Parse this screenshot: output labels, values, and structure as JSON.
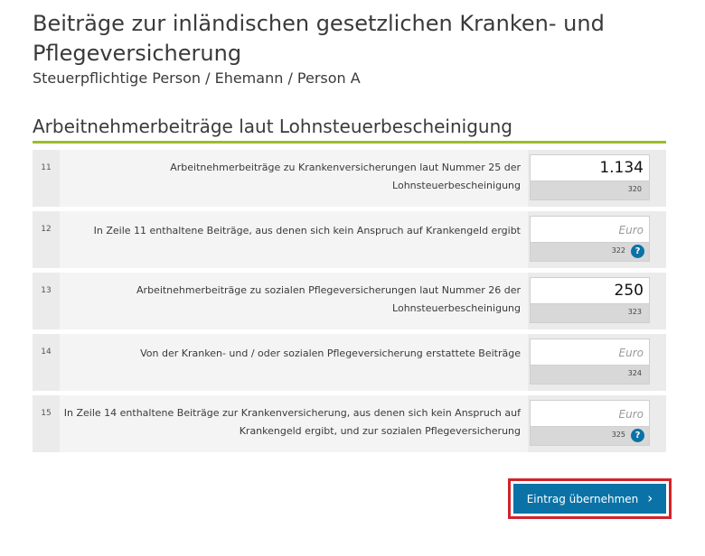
{
  "header": {
    "title": "Beiträge zur inländischen gesetzlichen Kranken- und Pflegeversicherung",
    "subtitle": "Steuerpflichtige Person / Ehemann / Person A"
  },
  "section": {
    "heading": "Arbeitnehmerbeiträge laut Lohnsteuerbescheinigung"
  },
  "rows": [
    {
      "number": "11",
      "label": "Arbeitnehmerbeiträge zu Krankenversicherungen laut Nummer 25 der Lohnsteuerbescheinigung",
      "value": "1.134",
      "placeholder": "Euro",
      "code": "320",
      "help": false
    },
    {
      "number": "12",
      "label": "In Zeile 11 enthaltene Beiträge, aus denen sich kein Anspruch auf Krankengeld ergibt",
      "value": "",
      "placeholder": "Euro",
      "code": "322",
      "help": true
    },
    {
      "number": "13",
      "label": "Arbeitnehmerbeiträge zu sozialen Pflegeversicherungen laut Nummer 26 der Lohnsteuerbescheinigung",
      "value": "250",
      "placeholder": "Euro",
      "code": "323",
      "help": false
    },
    {
      "number": "14",
      "label": "Von der Kranken- und / oder sozialen Pflegeversicherung erstattete Beiträge",
      "value": "",
      "placeholder": "Euro",
      "code": "324",
      "help": false
    },
    {
      "number": "15",
      "label": "In Zeile 14 enthaltene Beiträge zur Krankenversicherung, aus denen sich kein Anspruch auf Krankengeld ergibt, und zur sozialen Pflegeversicherung",
      "value": "",
      "placeholder": "Euro",
      "code": "325",
      "help": true
    }
  ],
  "help_icon_glyph": "?",
  "submit": {
    "label": "Eintrag übernehmen",
    "icon": "chevron-right-icon",
    "icon_glyph": "›"
  },
  "colors": {
    "accent_green": "#9bbb2c",
    "button_blue": "#0a72a6",
    "highlight_red": "#d2232a"
  }
}
